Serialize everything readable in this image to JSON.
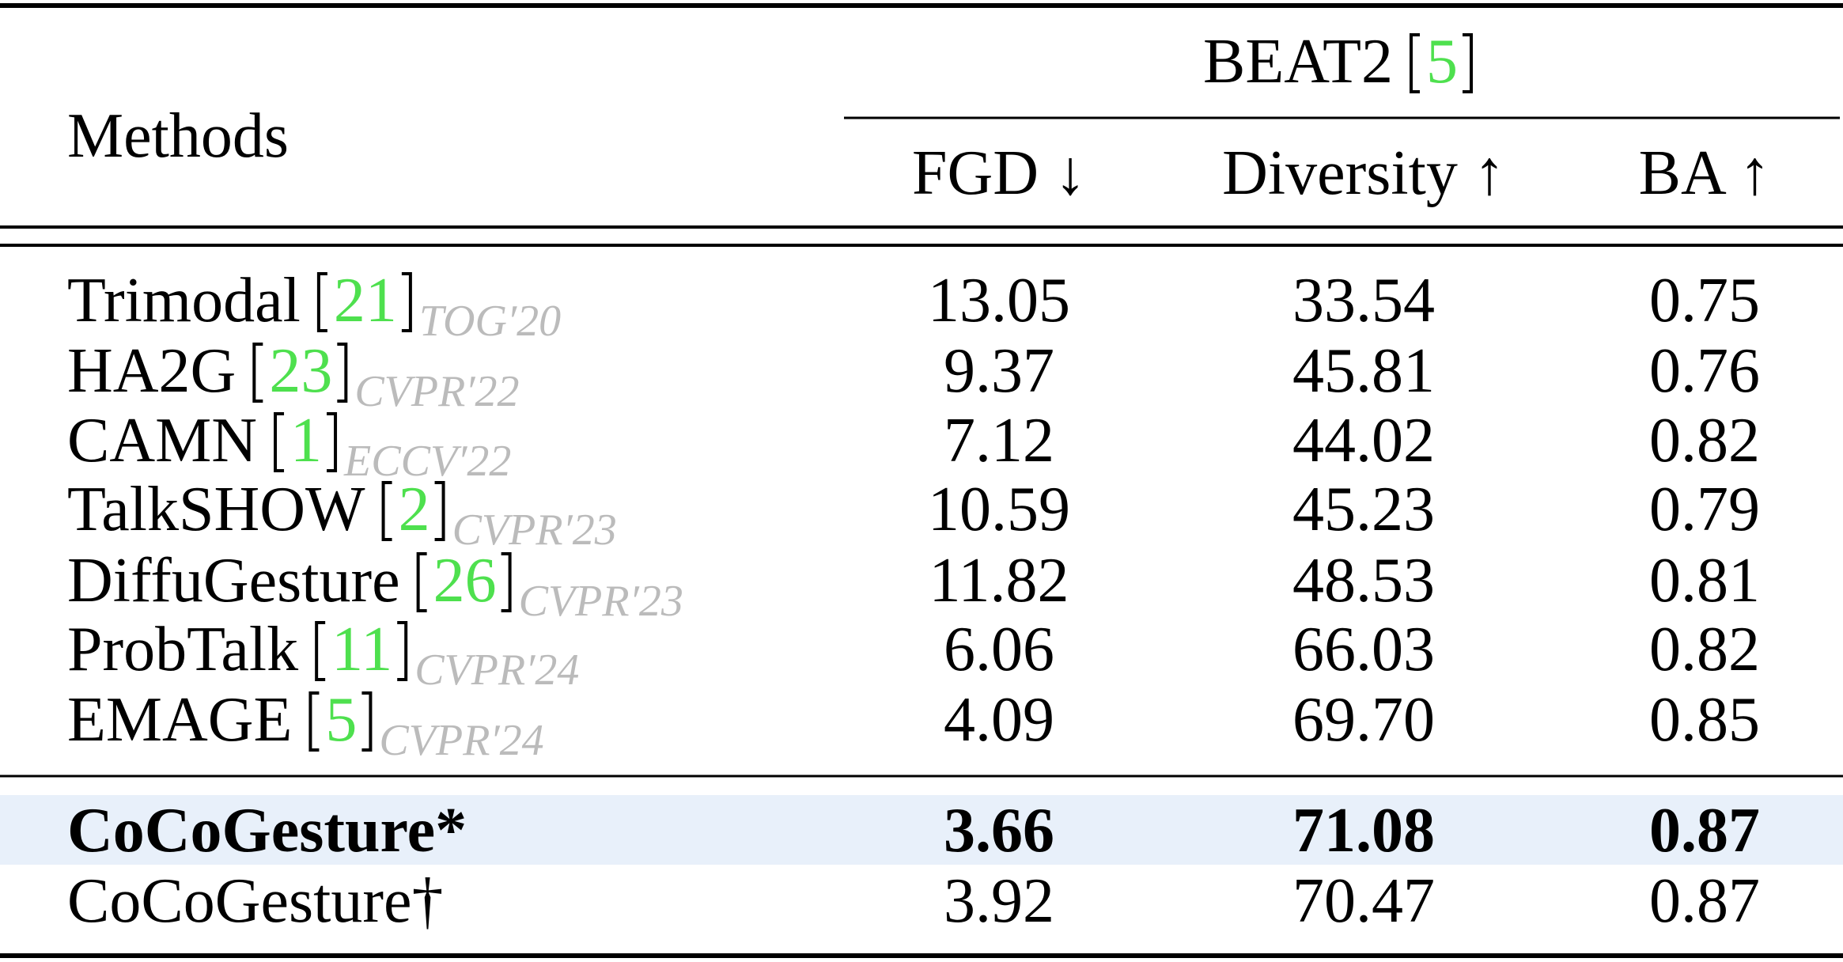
{
  "header": {
    "methods": "Methods",
    "group": "BEAT2",
    "group_ref": "5",
    "columns": [
      "FGD ↓",
      "Diversity ↑",
      "BA ↑"
    ]
  },
  "table": {
    "rows": [
      {
        "method": "Trimodal",
        "ref": "21",
        "venue": "TOG′20",
        "values": [
          "13.05",
          "33.54",
          "0.75"
        ]
      },
      {
        "method": "HA2G",
        "ref": "23",
        "venue": "CVPR′22",
        "values": [
          "9.37",
          "45.81",
          "0.76"
        ]
      },
      {
        "method": "CAMN",
        "ref": "1",
        "venue": "ECCV′22",
        "values": [
          "7.12",
          "44.02",
          "0.82"
        ]
      },
      {
        "method": "TalkSHOW",
        "ref": "2",
        "venue": "CVPR′23",
        "values": [
          "10.59",
          "45.23",
          "0.79"
        ]
      },
      {
        "method": "DiffuGesture",
        "ref": "26",
        "venue": "CVPR′23",
        "values": [
          "11.82",
          "48.53",
          "0.81"
        ]
      },
      {
        "method": "ProbTalk",
        "ref": "11",
        "venue": "CVPR′24",
        "values": [
          "6.06",
          "66.03",
          "0.82"
        ]
      },
      {
        "method": "EMAGE",
        "ref": "5",
        "venue": "CVPR′24",
        "values": [
          "4.09",
          "69.70",
          "0.85"
        ]
      },
      {
        "method": "CoCoGesture*",
        "values": [
          "3.66",
          "71.08",
          "0.87"
        ],
        "bold": true,
        "highlight": true
      },
      {
        "method": "CoCoGesture†",
        "values": [
          "3.92",
          "70.47",
          "0.87"
        ]
      }
    ]
  }
}
